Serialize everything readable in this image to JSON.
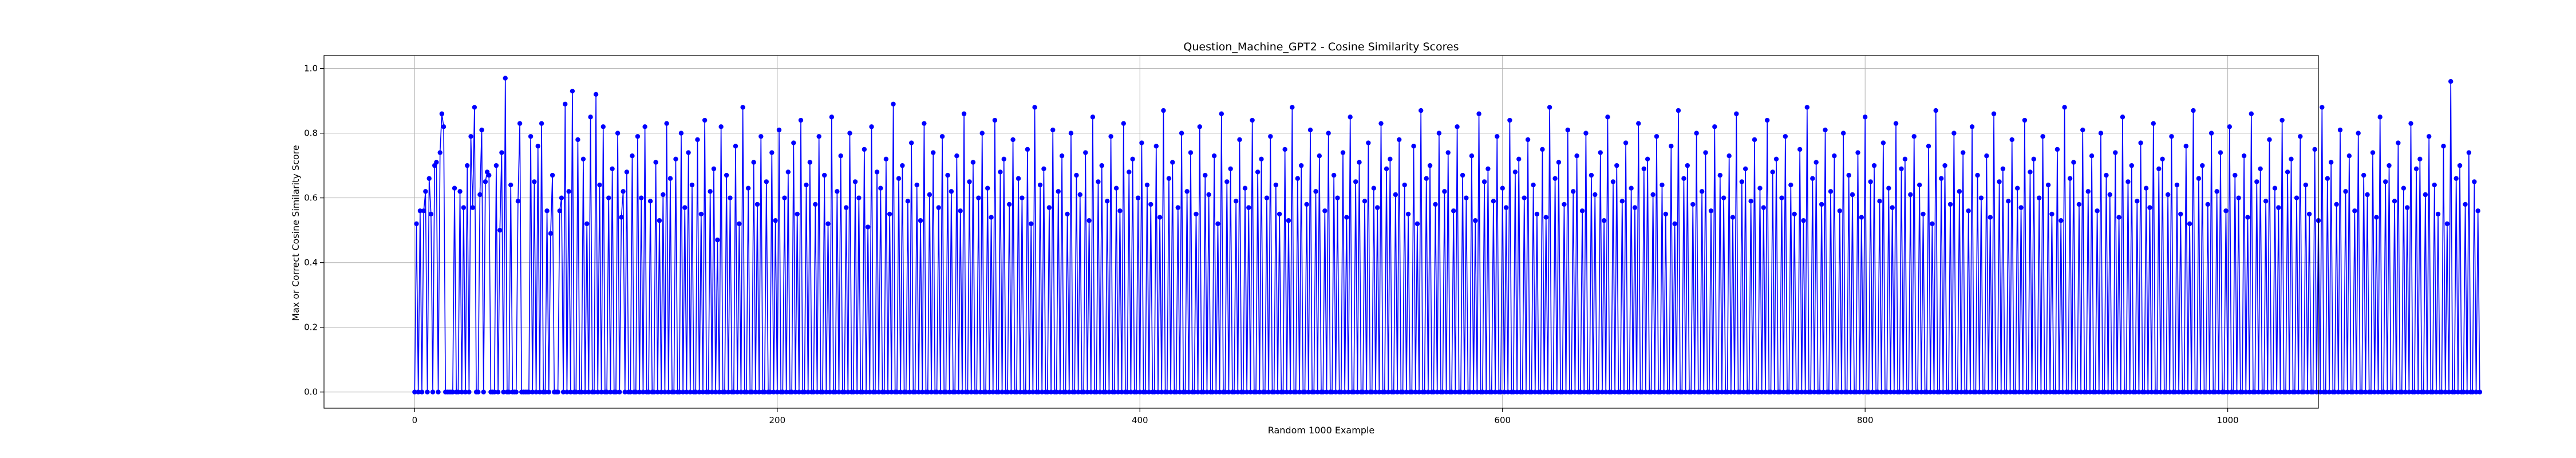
{
  "chart_data": {
    "type": "line",
    "title": "Question_Machine_GPT2 - Cosine Similarity Scores",
    "xlabel": "Random 1000 Example",
    "ylabel": "Max or Correct Cosine Similarity Score",
    "xlim": [
      -50,
      1050
    ],
    "ylim": [
      -0.05,
      1.04
    ],
    "xticks": [
      0,
      200,
      400,
      600,
      800,
      1000
    ],
    "yticks": [
      0.0,
      0.2,
      0.4,
      0.6,
      0.8,
      1.0
    ],
    "xtick_labels": [
      "0",
      "200",
      "400",
      "600",
      "800",
      "1000"
    ],
    "ytick_labels": [
      "0.0",
      "0.2",
      "0.4",
      "0.6",
      "0.8",
      "1.0"
    ],
    "grid": true,
    "series": [
      {
        "color": "#0000ff",
        "marker": "circle",
        "x_start": 0,
        "x_step": 1,
        "values": [
          0.0,
          0.52,
          0.0,
          0.56,
          0.0,
          0.56,
          0.62,
          0.0,
          0.66,
          0.55,
          0.0,
          0.7,
          0.71,
          0.0,
          0.74,
          0.86,
          0.82,
          0.0,
          0.0,
          0.0,
          0.0,
          0.0,
          0.63,
          0.0,
          0.0,
          0.62,
          0.0,
          0.57,
          0.0,
          0.7,
          0.0,
          0.79,
          0.57,
          0.88,
          0.0,
          0.0,
          0.61,
          0.81,
          0.0,
          0.65,
          0.68,
          0.67,
          0.0,
          0.0,
          0.0,
          0.7,
          0.0,
          0.5,
          0.74,
          0.0,
          0.97,
          0.0,
          0.0,
          0.64,
          0.0,
          0.0,
          0.0,
          0.59,
          0.83,
          0.0,
          0.0,
          0.0,
          0.0,
          0.0,
          0.79,
          0.0,
          0.65,
          0.0,
          0.76,
          0.0,
          0.83,
          0.0,
          0.0,
          0.56,
          0.0,
          0.49,
          0.67,
          0.0,
          0.0,
          0.0,
          0.56,
          0.6,
          0.0,
          0.89,
          0.0,
          0.62,
          0.0,
          0.93,
          0.0,
          0.0,
          0.78,
          0.0,
          0.0,
          0.72,
          0.0,
          0.52,
          0.0,
          0.85,
          0.0,
          0.0,
          0.92,
          0.0,
          0.64,
          0.0,
          0.82,
          0.0,
          0.0,
          0.6,
          0.0,
          0.69,
          0.0,
          0.0,
          0.8,
          0.0,
          0.54,
          0.62,
          0.0,
          0.68,
          0.0,
          0.0,
          0.73,
          0.0,
          0.0,
          0.79,
          0.0,
          0.6,
          0.0,
          0.82,
          0.0,
          0.0,
          0.59,
          0.0,
          0.0,
          0.71,
          0.0,
          0.53,
          0.0,
          0.61,
          0.0,
          0.83,
          0.0,
          0.66,
          0.0,
          0.0,
          0.72,
          0.0,
          0.0,
          0.8,
          0.0,
          0.57,
          0.0,
          0.74,
          0.0,
          0.64,
          0.0,
          0.0,
          0.78,
          0.0,
          0.55,
          0.0,
          0.84,
          0.0,
          0.0,
          0.62,
          0.0,
          0.69,
          0.0,
          0.47,
          0.0,
          0.82,
          0.0,
          0.0,
          0.67,
          0.0,
          0.6,
          0.0,
          0.0,
          0.76,
          0.0,
          0.52,
          0.0,
          0.88,
          0.0,
          0.0,
          0.63,
          0.0,
          0.0,
          0.71,
          0.0,
          0.58,
          0.0,
          0.79,
          0.0,
          0.0,
          0.65,
          0.0,
          0.0,
          0.74,
          0.0,
          0.53,
          0.0,
          0.81,
          0.0,
          0.0,
          0.6,
          0.0,
          0.68,
          0.0,
          0.0,
          0.77,
          0.0,
          0.55,
          0.0,
          0.84,
          0.0,
          0.0,
          0.64,
          0.0,
          0.71,
          0.0,
          0.0,
          0.58,
          0.0,
          0.79,
          0.0,
          0.0,
          0.67,
          0.0,
          0.52,
          0.0,
          0.85,
          0.0,
          0.0,
          0.62,
          0.0,
          0.73,
          0.0,
          0.0,
          0.57,
          0.0,
          0.8,
          0.0,
          0.0,
          0.65,
          0.0,
          0.6,
          0.0,
          0.0,
          0.75,
          0.0,
          0.51,
          0.0,
          0.82,
          0.0,
          0.0,
          0.68,
          0.0,
          0.63,
          0.0,
          0.0,
          0.72,
          0.0,
          0.55,
          0.0,
          0.89,
          0.0,
          0.0,
          0.66,
          0.0,
          0.7,
          0.0,
          0.0,
          0.59,
          0.0,
          0.77,
          0.0,
          0.0,
          0.64,
          0.0,
          0.53,
          0.0,
          0.83,
          0.0,
          0.0,
          0.61,
          0.0,
          0.74,
          0.0,
          0.0,
          0.57,
          0.0,
          0.79,
          0.0,
          0.0,
          0.67,
          0.0,
          0.62,
          0.0,
          0.0,
          0.73,
          0.0,
          0.56,
          0.0,
          0.86,
          0.0,
          0.0,
          0.65,
          0.0,
          0.71,
          0.0,
          0.0,
          0.6,
          0.0,
          0.8,
          0.0,
          0.0,
          0.63,
          0.0,
          0.54,
          0.0,
          0.84,
          0.0,
          0.0,
          0.68,
          0.0,
          0.72,
          0.0,
          0.0,
          0.58,
          0.0,
          0.78,
          0.0,
          0.0,
          0.66,
          0.0,
          0.6,
          0.0,
          0.0,
          0.75,
          0.0,
          0.52,
          0.0,
          0.88,
          0.0,
          0.0,
          0.64,
          0.0,
          0.69,
          0.0,
          0.0,
          0.57,
          0.0,
          0.81,
          0.0,
          0.0,
          0.62,
          0.0,
          0.73,
          0.0,
          0.0,
          0.55,
          0.0,
          0.8,
          0.0,
          0.0,
          0.67,
          0.0,
          0.61,
          0.0,
          0.0,
          0.74,
          0.0,
          0.53,
          0.0,
          0.85,
          0.0,
          0.0,
          0.65,
          0.0,
          0.7,
          0.0,
          0.0,
          0.59,
          0.0,
          0.79,
          0.0,
          0.0,
          0.63,
          0.0,
          0.56,
          0.0,
          0.83,
          0.0,
          0.0,
          0.68,
          0.0,
          0.72,
          0.0,
          0.0,
          0.6,
          0.0,
          0.77,
          0.0,
          0.0,
          0.64,
          0.0,
          0.58,
          0.0,
          0.0,
          0.76,
          0.0,
          0.54,
          0.0,
          0.87,
          0.0,
          0.0,
          0.66,
          0.0,
          0.71,
          0.0,
          0.0,
          0.57,
          0.0,
          0.8,
          0.0,
          0.0,
          0.62,
          0.0,
          0.74,
          0.0,
          0.0,
          0.55,
          0.0,
          0.82,
          0.0,
          0.0,
          0.67,
          0.0,
          0.61,
          0.0,
          0.0,
          0.73,
          0.0,
          0.52,
          0.0,
          0.86,
          0.0,
          0.0,
          0.65,
          0.0,
          0.69,
          0.0,
          0.0,
          0.59,
          0.0,
          0.78,
          0.0,
          0.0,
          0.63,
          0.0,
          0.57,
          0.0,
          0.84,
          0.0,
          0.0,
          0.68,
          0.0,
          0.72,
          0.0,
          0.0,
          0.6,
          0.0,
          0.79,
          0.0,
          0.0,
          0.64,
          0.0,
          0.55,
          0.0,
          0.0,
          0.75,
          0.0,
          0.53,
          0.0,
          0.88,
          0.0,
          0.0,
          0.66,
          0.0,
          0.7,
          0.0,
          0.0,
          0.58,
          0.0,
          0.81,
          0.0,
          0.0,
          0.62,
          0.0,
          0.73,
          0.0,
          0.0,
          0.56,
          0.0,
          0.8,
          0.0,
          0.0,
          0.67,
          0.0,
          0.6,
          0.0,
          0.0,
          0.74,
          0.0,
          0.54,
          0.0,
          0.85,
          0.0,
          0.0,
          0.65,
          0.0,
          0.71,
          0.0,
          0.0,
          0.59,
          0.0,
          0.77,
          0.0,
          0.0,
          0.63,
          0.0,
          0.57,
          0.0,
          0.83,
          0.0,
          0.0,
          0.69,
          0.0,
          0.72,
          0.0,
          0.0,
          0.61,
          0.0,
          0.78,
          0.0,
          0.0,
          0.64,
          0.0,
          0.55,
          0.0,
          0.0,
          0.76,
          0.0,
          0.52,
          0.0,
          0.87,
          0.0,
          0.0,
          0.66,
          0.0,
          0.7,
          0.0,
          0.0,
          0.58,
          0.0,
          0.8,
          0.0,
          0.0,
          0.62,
          0.0,
          0.74,
          0.0,
          0.0,
          0.56,
          0.0,
          0.82,
          0.0,
          0.0,
          0.67,
          0.0,
          0.6,
          0.0,
          0.0,
          0.73,
          0.0,
          0.53,
          0.0,
          0.86,
          0.0,
          0.0,
          0.65,
          0.0,
          0.69,
          0.0,
          0.0,
          0.59,
          0.0,
          0.79,
          0.0,
          0.0,
          0.63,
          0.0,
          0.57,
          0.0,
          0.84,
          0.0,
          0.0,
          0.68,
          0.0,
          0.72,
          0.0,
          0.0,
          0.6,
          0.0,
          0.78,
          0.0,
          0.0,
          0.64,
          0.0,
          0.55,
          0.0,
          0.0,
          0.75,
          0.0,
          0.54,
          0.0,
          0.88,
          0.0,
          0.0,
          0.66,
          0.0,
          0.71,
          0.0,
          0.0,
          0.58,
          0.0,
          0.81,
          0.0,
          0.0,
          0.62,
          0.0,
          0.73,
          0.0,
          0.0,
          0.56,
          0.0,
          0.8,
          0.0,
          0.0,
          0.67,
          0.0,
          0.61,
          0.0,
          0.0,
          0.74,
          0.0,
          0.53,
          0.0,
          0.85,
          0.0,
          0.0,
          0.65,
          0.0,
          0.7,
          0.0,
          0.0,
          0.59,
          0.0,
          0.77,
          0.0,
          0.0,
          0.63,
          0.0,
          0.57,
          0.0,
          0.83,
          0.0,
          0.0,
          0.69,
          0.0,
          0.72,
          0.0,
          0.0,
          0.61,
          0.0,
          0.79,
          0.0,
          0.0,
          0.64,
          0.0,
          0.55,
          0.0,
          0.0,
          0.76,
          0.0,
          0.52,
          0.0,
          0.87,
          0.0,
          0.0,
          0.66,
          0.0,
          0.7,
          0.0,
          0.0,
          0.58,
          0.0,
          0.8,
          0.0,
          0.0,
          0.62,
          0.0,
          0.74,
          0.0,
          0.0,
          0.56,
          0.0,
          0.82,
          0.0,
          0.0,
          0.67,
          0.0,
          0.6,
          0.0,
          0.0,
          0.73,
          0.0,
          0.54,
          0.0,
          0.86,
          0.0,
          0.0,
          0.65,
          0.0,
          0.69,
          0.0,
          0.0,
          0.59,
          0.0,
          0.78,
          0.0,
          0.0,
          0.63,
          0.0,
          0.57,
          0.0,
          0.84,
          0.0,
          0.0,
          0.68,
          0.0,
          0.72,
          0.0,
          0.0,
          0.6,
          0.0,
          0.79,
          0.0,
          0.0,
          0.64,
          0.0,
          0.55,
          0.0,
          0.0,
          0.75,
          0.0,
          0.53,
          0.0,
          0.88,
          0.0,
          0.0,
          0.66,
          0.0,
          0.71,
          0.0,
          0.0,
          0.58,
          0.0,
          0.81,
          0.0,
          0.0,
          0.62,
          0.0,
          0.73,
          0.0,
          0.0,
          0.56,
          0.0,
          0.8,
          0.0,
          0.0,
          0.67,
          0.0,
          0.61,
          0.0,
          0.0,
          0.74,
          0.0,
          0.54,
          0.0,
          0.85,
          0.0,
          0.0,
          0.65,
          0.0,
          0.7,
          0.0,
          0.0,
          0.59,
          0.0,
          0.77,
          0.0,
          0.0,
          0.63,
          0.0,
          0.57,
          0.0,
          0.83,
          0.0,
          0.0,
          0.69,
          0.0,
          0.72,
          0.0,
          0.0,
          0.61,
          0.0,
          0.79,
          0.0,
          0.0,
          0.64,
          0.0,
          0.55,
          0.0,
          0.0,
          0.76,
          0.0,
          0.52,
          0.0,
          0.87,
          0.0,
          0.0,
          0.66,
          0.0,
          0.7,
          0.0,
          0.0,
          0.58,
          0.0,
          0.8,
          0.0,
          0.0,
          0.62,
          0.0,
          0.74,
          0.0,
          0.0,
          0.56,
          0.0,
          0.82,
          0.0,
          0.0,
          0.67,
          0.0,
          0.6,
          0.0,
          0.0,
          0.73,
          0.0,
          0.54,
          0.0,
          0.86,
          0.0,
          0.0,
          0.65,
          0.0,
          0.69,
          0.0,
          0.0,
          0.59,
          0.0,
          0.78,
          0.0,
          0.0,
          0.63,
          0.0,
          0.57,
          0.0,
          0.84,
          0.0,
          0.0,
          0.68,
          0.0,
          0.72,
          0.0,
          0.0,
          0.6,
          0.0,
          0.79,
          0.0,
          0.0,
          0.64,
          0.0,
          0.55,
          0.0,
          0.0,
          0.75,
          0.0,
          0.53,
          0.0,
          0.88,
          0.0,
          0.0,
          0.66,
          0.0,
          0.71,
          0.0,
          0.0,
          0.58,
          0.0,
          0.81,
          0.0,
          0.0,
          0.62,
          0.0,
          0.73,
          0.0,
          0.0,
          0.56,
          0.0,
          0.8,
          0.0,
          0.0,
          0.67,
          0.0,
          0.61,
          0.0,
          0.0,
          0.74,
          0.0,
          0.54,
          0.0,
          0.85,
          0.0,
          0.0,
          0.65,
          0.0,
          0.7,
          0.0,
          0.0,
          0.59,
          0.0,
          0.77,
          0.0,
          0.0,
          0.63,
          0.0,
          0.57,
          0.0,
          0.83,
          0.0,
          0.0,
          0.69,
          0.0,
          0.72,
          0.0,
          0.0,
          0.61,
          0.0,
          0.79,
          0.0,
          0.0,
          0.64,
          0.0,
          0.55,
          0.0,
          0.0,
          0.76,
          0.0,
          0.52,
          0.0,
          0.87,
          0.0,
          0.0,
          0.66,
          0.0,
          0.7,
          0.0,
          0.0,
          0.58,
          0.0,
          0.8,
          0.0,
          0.0,
          0.62,
          0.0,
          0.74,
          0.0,
          0.0,
          0.56,
          0.0,
          0.82,
          0.0,
          0.0,
          0.67,
          0.0,
          0.6,
          0.0,
          0.0,
          0.73,
          0.0,
          0.54,
          0.0,
          0.86,
          0.0,
          0.0,
          0.65,
          0.0,
          0.69,
          0.0,
          0.0,
          0.59,
          0.0,
          0.78,
          0.0,
          0.0,
          0.63,
          0.0,
          0.57,
          0.0,
          0.84,
          0.0,
          0.0,
          0.68,
          0.0,
          0.72,
          0.0,
          0.0,
          0.6,
          0.0,
          0.79,
          0.0,
          0.0,
          0.64,
          0.0,
          0.55,
          0.0,
          0.0,
          0.75,
          0.0,
          0.53,
          0.0,
          0.88,
          0.0,
          0.0,
          0.66,
          0.0,
          0.71,
          0.0,
          0.0,
          0.58,
          0.0,
          0.81,
          0.0,
          0.0,
          0.62,
          0.0,
          0.73,
          0.0,
          0.0,
          0.56,
          0.0,
          0.8,
          0.0,
          0.0,
          0.67,
          0.0,
          0.61,
          0.0,
          0.0,
          0.74,
          0.0,
          0.54,
          0.0,
          0.85,
          0.0,
          0.0,
          0.65,
          0.0,
          0.7,
          0.0,
          0.0,
          0.59,
          0.0,
          0.77,
          0.0,
          0.0,
          0.63,
          0.0,
          0.57,
          0.0,
          0.83,
          0.0,
          0.0,
          0.69,
          0.0,
          0.72,
          0.0,
          0.0,
          0.61,
          0.0,
          0.79,
          0.0,
          0.0,
          0.64,
          0.0,
          0.55,
          0.0,
          0.0,
          0.76,
          0.0,
          0.52,
          0.0,
          0.96,
          0.0,
          0.0,
          0.66,
          0.0,
          0.7,
          0.0,
          0.0,
          0.58,
          0.0,
          0.74,
          0.0,
          0.0,
          0.65,
          0.0,
          0.56,
          0.0
        ]
      }
    ]
  }
}
